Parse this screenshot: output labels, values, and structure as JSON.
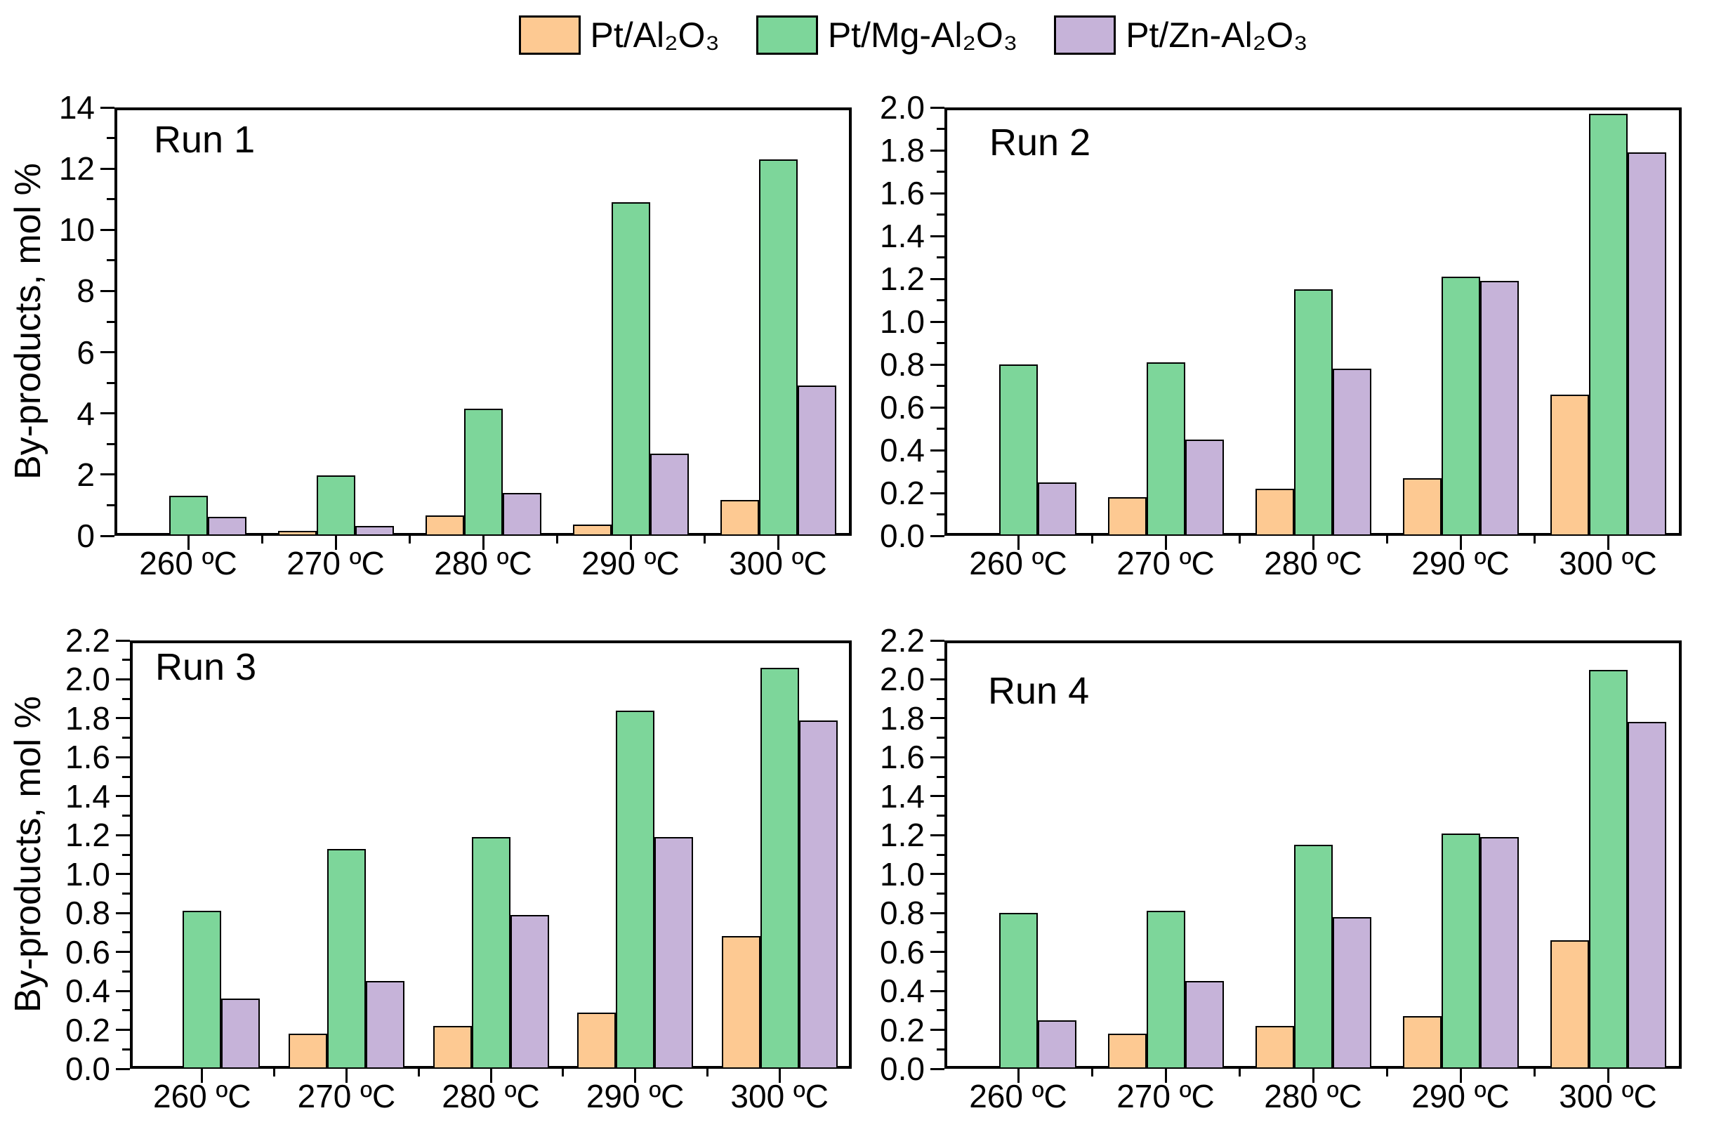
{
  "figure": {
    "background": "#FFFFFF",
    "axis_color": "#000000",
    "legend": {
      "position": "top-center",
      "items": [
        {
          "label": "Pt/Al₂O₃",
          "color": "#FDC992"
        },
        {
          "label": "Pt/Mg-Al₂O₃",
          "color": "#7DD69A"
        },
        {
          "label": "Pt/Zn-Al₂O₃",
          "color": "#C6B3D9"
        }
      ]
    }
  },
  "chart_data": [
    {
      "type": "bar",
      "title": "Run 1",
      "ylabel": "By-products, mol %",
      "xlabel": "",
      "categories": [
        "260 ºC",
        "270 ºC",
        "280 ºC",
        "290 ºC",
        "300 ºC"
      ],
      "ylim": [
        0,
        14
      ],
      "ytick_step": 2,
      "ytick_decimals": 0,
      "grid": false,
      "series": [
        {
          "name": "Pt/Al₂O₃",
          "color": "#FDC992",
          "values": [
            0,
            0.15,
            0.67,
            0.37,
            1.18
          ]
        },
        {
          "name": "Pt/Mg-Al₂O₃",
          "color": "#7DD69A",
          "values": [
            1.3,
            1.97,
            4.15,
            10.9,
            12.3
          ]
        },
        {
          "name": "Pt/Zn-Al₂O₃",
          "color": "#C6B3D9",
          "values": [
            0.62,
            0.33,
            1.4,
            2.68,
            4.9
          ]
        }
      ]
    },
    {
      "type": "bar",
      "title": "Run 2",
      "ylabel": "",
      "xlabel": "",
      "categories": [
        "260 ºC",
        "270 ºC",
        "280 ºC",
        "290 ºC",
        "300 ºC"
      ],
      "ylim": [
        0,
        2.0
      ],
      "ytick_step": 0.2,
      "ytick_decimals": 1,
      "grid": false,
      "series": [
        {
          "name": "Pt/Al₂O₃",
          "color": "#FDC992",
          "values": [
            0,
            0.18,
            0.22,
            0.27,
            0.66
          ]
        },
        {
          "name": "Pt/Mg-Al₂O₃",
          "color": "#7DD69A",
          "values": [
            0.8,
            0.81,
            1.15,
            1.21,
            1.97
          ]
        },
        {
          "name": "Pt/Zn-Al₂O₃",
          "color": "#C6B3D9",
          "values": [
            0.25,
            0.45,
            0.78,
            1.19,
            1.79
          ]
        }
      ]
    },
    {
      "type": "bar",
      "title": "Run 3",
      "ylabel": "By-products, mol %",
      "xlabel": "",
      "categories": [
        "260 ºC",
        "270 ºC",
        "280 ºC",
        "290 ºC",
        "300 ºC"
      ],
      "ylim": [
        0,
        2.2
      ],
      "ytick_step": 0.2,
      "ytick_decimals": 1,
      "grid": false,
      "series": [
        {
          "name": "Pt/Al₂O₃",
          "color": "#FDC992",
          "values": [
            0,
            0.18,
            0.22,
            0.29,
            0.68
          ]
        },
        {
          "name": "Pt/Mg-Al₂O₃",
          "color": "#7DD69A",
          "values": [
            0.81,
            1.13,
            1.19,
            1.84,
            2.06
          ]
        },
        {
          "name": "Pt/Zn-Al₂O₃",
          "color": "#C6B3D9",
          "values": [
            0.36,
            0.45,
            0.79,
            1.19,
            1.79
          ]
        }
      ]
    },
    {
      "type": "bar",
      "title": "Run 4",
      "ylabel": "",
      "xlabel": "",
      "categories": [
        "260 ºC",
        "270 ºC",
        "280 ºC",
        "290 ºC",
        "300 ºC"
      ],
      "ylim": [
        0,
        2.2
      ],
      "ytick_step": 0.2,
      "ytick_decimals": 1,
      "grid": false,
      "series": [
        {
          "name": "Pt/Al₂O₃",
          "color": "#FDC992",
          "values": [
            0,
            0.18,
            0.22,
            0.27,
            0.66
          ]
        },
        {
          "name": "Pt/Mg-Al₂O₃",
          "color": "#7DD69A",
          "values": [
            0.8,
            0.81,
            1.15,
            1.21,
            2.05
          ]
        },
        {
          "name": "Pt/Zn-Al₂O₃",
          "color": "#C6B3D9",
          "values": [
            0.25,
            0.45,
            0.78,
            1.19,
            1.78
          ]
        }
      ]
    }
  ]
}
